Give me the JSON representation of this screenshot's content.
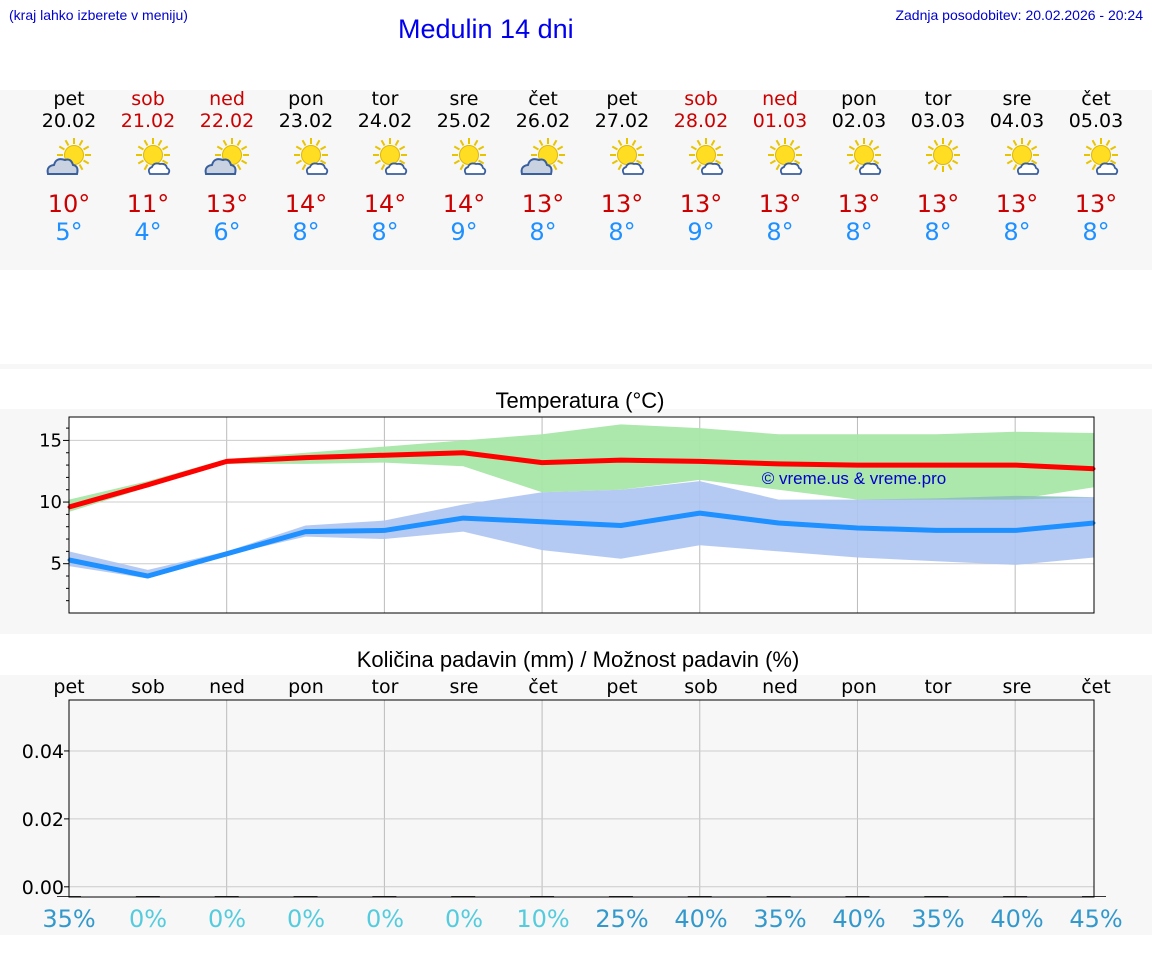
{
  "header": {
    "hint": "(kraj lahko izberete v meniju)",
    "title": "Medulin 14 dni",
    "updated": "Zadnja posodobitev: 20.02.2026 - 20:24"
  },
  "forecast": [
    {
      "day": "pet",
      "date": "20.02",
      "weekend": false,
      "icon": "cloudy-sun-icon",
      "tmax": "10°",
      "tmin": "5°"
    },
    {
      "day": "sob",
      "date": "21.02",
      "weekend": true,
      "icon": "sun-cloud-icon",
      "tmax": "11°",
      "tmin": "4°"
    },
    {
      "day": "ned",
      "date": "22.02",
      "weekend": true,
      "icon": "cloudy-sun-icon",
      "tmax": "13°",
      "tmin": "6°"
    },
    {
      "day": "pon",
      "date": "23.02",
      "weekend": false,
      "icon": "sun-cloud-icon",
      "tmax": "14°",
      "tmin": "8°"
    },
    {
      "day": "tor",
      "date": "24.02",
      "weekend": false,
      "icon": "sun-cloud-icon",
      "tmax": "14°",
      "tmin": "8°"
    },
    {
      "day": "sre",
      "date": "25.02",
      "weekend": false,
      "icon": "sun-cloud-icon",
      "tmax": "14°",
      "tmin": "9°"
    },
    {
      "day": "čet",
      "date": "26.02",
      "weekend": false,
      "icon": "cloudy-sun-icon",
      "tmax": "13°",
      "tmin": "8°"
    },
    {
      "day": "pet",
      "date": "27.02",
      "weekend": false,
      "icon": "sun-cloud-icon",
      "tmax": "13°",
      "tmin": "8°"
    },
    {
      "day": "sob",
      "date": "28.02",
      "weekend": true,
      "icon": "sun-cloud-icon",
      "tmax": "13°",
      "tmin": "9°"
    },
    {
      "day": "ned",
      "date": "01.03",
      "weekend": true,
      "icon": "sun-cloud-icon",
      "tmax": "13°",
      "tmin": "8°"
    },
    {
      "day": "pon",
      "date": "02.03",
      "weekend": false,
      "icon": "sun-cloud-icon",
      "tmax": "13°",
      "tmin": "8°"
    },
    {
      "day": "tor",
      "date": "03.03",
      "weekend": false,
      "icon": "sun-icon",
      "tmax": "13°",
      "tmin": "8°"
    },
    {
      "day": "sre",
      "date": "04.03",
      "weekend": false,
      "icon": "sun-cloud-icon",
      "tmax": "13°",
      "tmin": "8°"
    },
    {
      "day": "čet",
      "date": "05.03",
      "weekend": false,
      "icon": "sun-cloud-icon",
      "tmax": "13°",
      "tmin": "8°"
    }
  ],
  "colors": {
    "max_line": "#ff0000",
    "min_line": "#1e90ff",
    "max_band": "#a8e6a8",
    "min_band": "#adc4f2",
    "overlap_band": "#7fbf9f",
    "weekend_text": "#cc0000",
    "tmin_text": "#1e90ff",
    "prob_dark": "#3399cc",
    "prob_light": "#55ccdd"
  },
  "chart_data": [
    {
      "type": "line",
      "title": "Temperatura (°C)",
      "watermark": "© vreme.us & vreme.pro",
      "x": [
        0,
        1,
        2,
        3,
        4,
        5,
        6,
        7,
        8,
        9,
        10,
        11,
        12,
        13
      ],
      "ylim": [
        1.0,
        16.9
      ],
      "yticks": [
        5,
        10,
        15
      ],
      "grid": true,
      "series": [
        {
          "name": "max",
          "values": [
            9.6,
            11.4,
            13.3,
            13.6,
            13.8,
            14.0,
            13.2,
            13.4,
            13.3,
            13.1,
            13.0,
            13.0,
            13.0,
            12.7
          ],
          "band_low": [
            9.2,
            11.2,
            13.1,
            13.1,
            13.2,
            12.9,
            10.8,
            11.0,
            11.8,
            11.0,
            10.2,
            10.2,
            10.2,
            11.2
          ],
          "band_high": [
            10.2,
            11.7,
            13.5,
            14.0,
            14.5,
            15.0,
            15.5,
            16.3,
            16.0,
            15.5,
            15.5,
            15.5,
            15.7,
            15.6
          ]
        },
        {
          "name": "min",
          "values": [
            5.3,
            4.0,
            5.8,
            7.6,
            7.7,
            8.7,
            8.4,
            8.1,
            9.1,
            8.3,
            7.9,
            7.7,
            7.7,
            8.3
          ],
          "band_low": [
            4.8,
            3.8,
            5.7,
            7.2,
            7.0,
            7.6,
            6.1,
            5.4,
            6.5,
            6.0,
            5.5,
            5.2,
            4.9,
            5.5
          ],
          "band_high": [
            6.0,
            4.5,
            6.0,
            8.1,
            8.5,
            9.8,
            10.8,
            11.0,
            11.7,
            10.2,
            10.2,
            10.3,
            10.5,
            10.4
          ]
        }
      ]
    },
    {
      "type": "bar",
      "title": "Količina padavin (mm) / Možnost padavin (%)",
      "categories": [
        "pet",
        "sob",
        "ned",
        "pon",
        "tor",
        "sre",
        "čet",
        "pet",
        "sob",
        "ned",
        "pon",
        "tor",
        "sre",
        "čet"
      ],
      "values": [
        0,
        0,
        0,
        0,
        0,
        0,
        0,
        0,
        0,
        0,
        0,
        0,
        0,
        0
      ],
      "ylim": [
        -0.003,
        0.055
      ],
      "yticks": [
        "0.00",
        "0.02",
        "0.04"
      ],
      "ytick_values": [
        0,
        0.02,
        0.04
      ],
      "probability": [
        "35%",
        "0%",
        "0%",
        "0%",
        "0%",
        "0%",
        "10%",
        "25%",
        "40%",
        "35%",
        "40%",
        "35%",
        "40%",
        "45%"
      ]
    }
  ]
}
